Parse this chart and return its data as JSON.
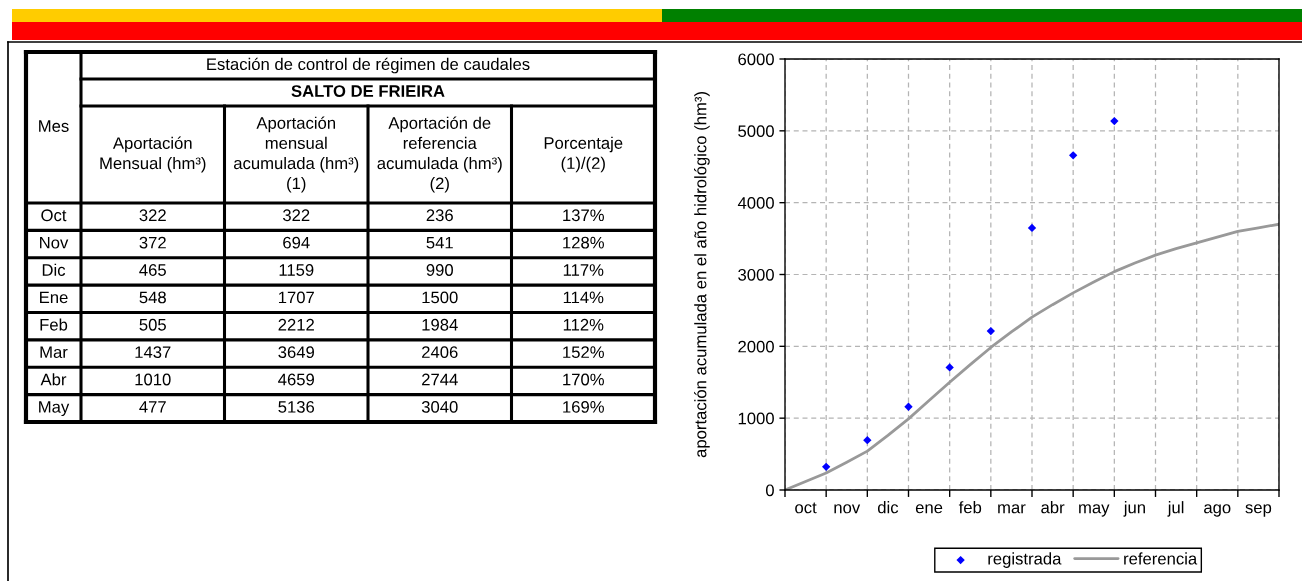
{
  "chart_data": [
    {
      "type": "other",
      "title": "Estación de control de régimen de caudales",
      "subtitle": "SALTO DE FRIEIRA",
      "xlabel": "Mes",
      "categories": [
        "Oct",
        "Nov",
        "Dic",
        "Ene",
        "Feb",
        "Mar",
        "Abr",
        "May"
      ],
      "data_labels": true,
      "series": [
        {
          "name": "Aportación\nMensual (hm³)",
          "values": [
            322,
            372,
            465,
            548,
            505,
            1437,
            1010,
            477
          ]
        },
        {
          "name": "Aportación\nmensual\nacumulada (hm³)\n(1)",
          "values": [
            322,
            694,
            1159,
            1707,
            2212,
            3649,
            4659,
            5136
          ]
        },
        {
          "name": "Aportación de\nreferencia\nacumulada (hm³)\n(2)",
          "values": [
            236,
            541,
            990,
            1500,
            1984,
            2406,
            2744,
            3040
          ]
        },
        {
          "name": "Porcentaje\n(1)/(2)",
          "values": [
            137,
            128,
            117,
            114,
            112,
            152,
            170,
            169
          ],
          "value_labels": [
            "137%",
            "128%",
            "117%",
            "114%",
            "112%",
            "152%",
            "170%",
            "169%"
          ]
        }
      ]
    },
    {
      "type": "line",
      "ylabel": "aportación acumulada en el año hidrológico (hm³)",
      "categories": [
        null,
        "oct",
        null,
        "nov",
        null,
        "dic",
        null,
        "ene",
        null,
        "feb",
        null,
        "mar",
        null,
        "abr",
        null,
        "may",
        null,
        "jun",
        null,
        "jul",
        null,
        "ago",
        null,
        "sep",
        null
      ],
      "ylim": [
        0,
        6000
      ],
      "yticks": [
        0,
        1000,
        2000,
        3000,
        4000,
        5000,
        6000
      ],
      "grid": true,
      "legend": "bottom",
      "series": [
        {
          "name": "registrada",
          "type": "scatter",
          "color": "#0000ff",
          "marker": "diamond",
          "values": [
            null,
            null,
            322,
            null,
            694,
            null,
            1159,
            null,
            1707,
            null,
            2212,
            null,
            3649,
            null,
            4659,
            null,
            5136,
            null,
            null,
            null,
            null,
            null,
            null,
            null,
            null
          ]
        },
        {
          "name": "referencia",
          "type": "line",
          "color": "#999999",
          "line_style": "solid",
          "values": [
            0,
            118,
            236,
            385,
            541,
            760,
            990,
            1245,
            1500,
            1745,
            1984,
            2200,
            2406,
            2580,
            2744,
            2895,
            3040,
            3160,
            3270,
            3360,
            3440,
            3520,
            3600,
            3650,
            3700
          ]
        }
      ]
    }
  ]
}
